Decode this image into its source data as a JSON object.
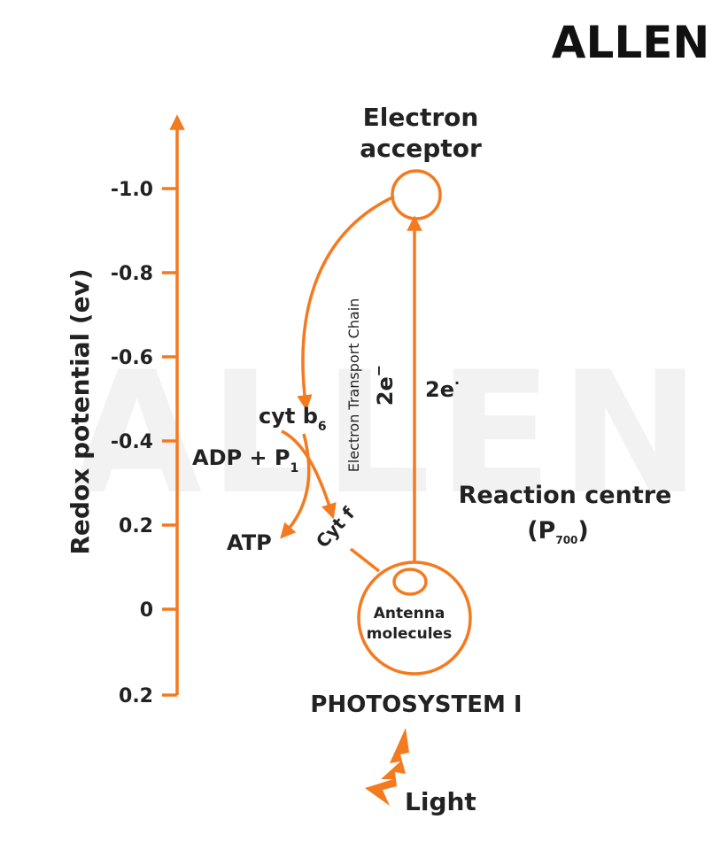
{
  "logo": "ALLEN",
  "watermark": "ALLEN",
  "axis": {
    "label": "Redox potential (ev)",
    "ticks": [
      "-1.0",
      "-0.8",
      "-0.6",
      "-0.4",
      "0.2",
      "0",
      "0.2"
    ]
  },
  "electron_acceptor": {
    "lines": [
      "Electron",
      "acceptor"
    ]
  },
  "cyt_b6": {
    "text": "cyt b",
    "sub": "6"
  },
  "adp": {
    "text": "ADP + P",
    "sub": "1"
  },
  "atp": "ATP",
  "cyt_f": "Cyt f",
  "etc": "Electron Transport Chain",
  "etc_electrons": {
    "text": "2e",
    "sup": "−"
  },
  "excited_electrons": {
    "text": "2e",
    "sup": "·"
  },
  "reaction_centre": {
    "line1": "Reaction centre",
    "open": "(P",
    "sub": "700",
    "close": ")"
  },
  "antenna": {
    "lines": [
      "Antenna",
      "molecules"
    ]
  },
  "photosystem": "PHOTOSYSTEM I",
  "light": "Light"
}
